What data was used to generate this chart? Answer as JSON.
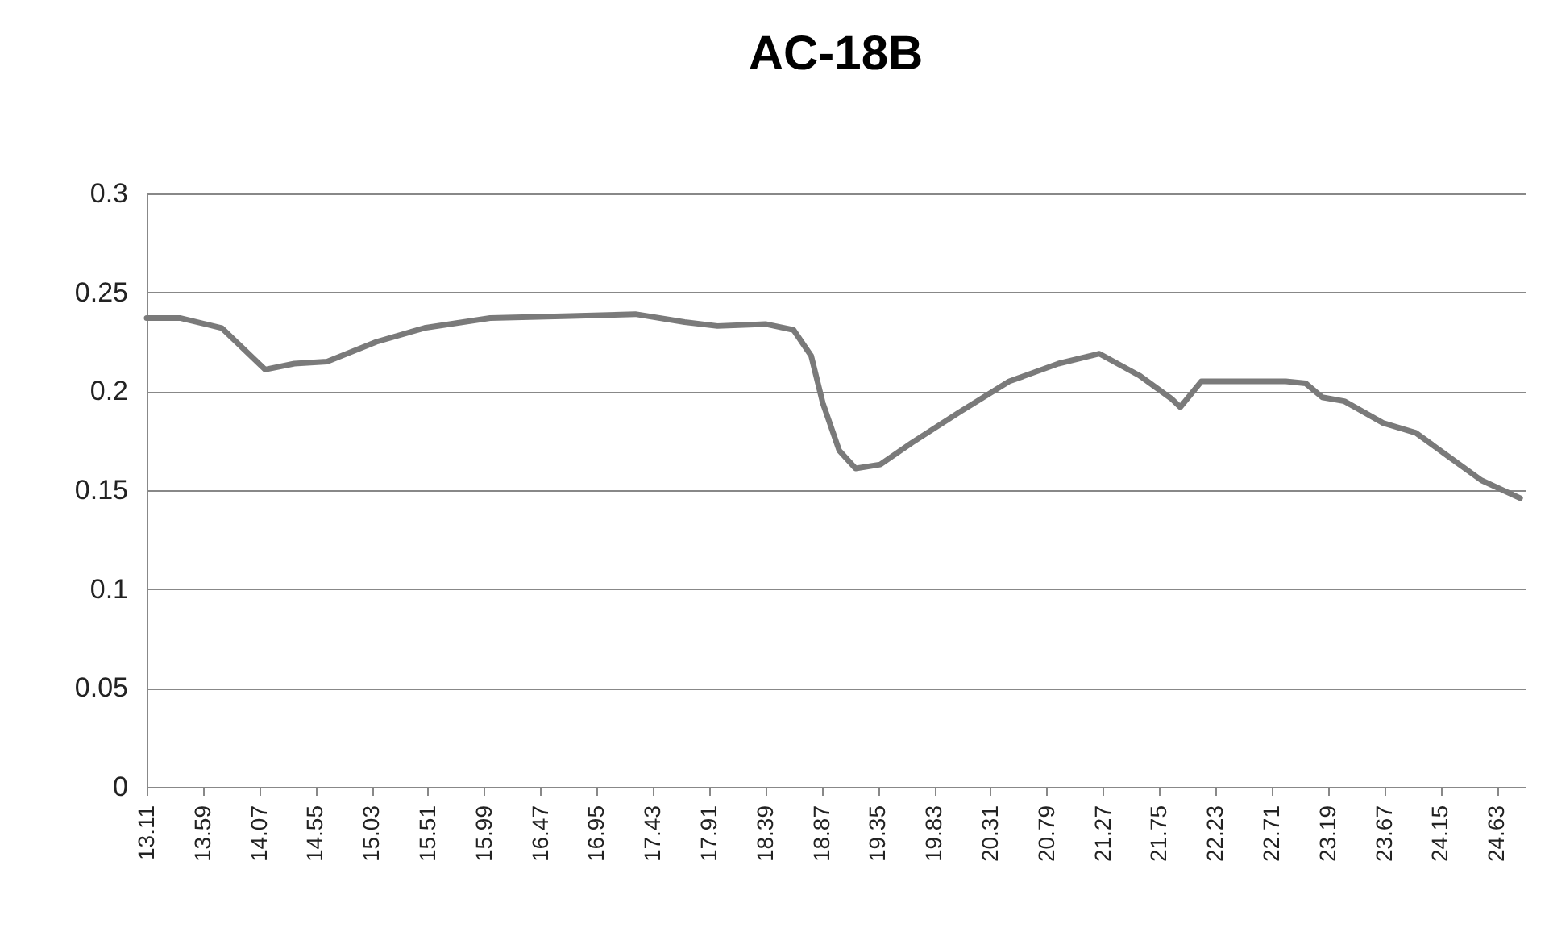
{
  "chart_data": {
    "type": "line",
    "title": "AC-18B",
    "x": [
      13.11,
      13.4,
      13.75,
      14.12,
      14.37,
      14.65,
      15.07,
      15.48,
      16.04,
      16.73,
      17.28,
      17.7,
      17.98,
      18.39,
      18.63,
      18.78,
      18.88,
      19.02,
      19.16,
      19.37,
      19.64,
      20.06,
      20.47,
      20.89,
      21.17,
      21.24,
      21.58,
      21.86,
      21.93,
      22.11,
      22.83,
      23.0,
      23.14,
      23.33,
      23.66,
      23.94,
      24.22,
      24.5,
      24.83
    ],
    "series": [
      {
        "color": "#7a7a7a",
        "values": [
          0.237,
          0.237,
          0.232,
          0.211,
          0.214,
          0.215,
          0.225,
          0.232,
          0.237,
          0.238,
          0.239,
          0.235,
          0.233,
          0.234,
          0.231,
          0.218,
          0.194,
          0.17,
          0.161,
          0.163,
          0.174,
          0.19,
          0.205,
          0.214,
          0.218,
          0.219,
          0.208,
          0.196,
          0.192,
          0.205,
          0.205,
          0.204,
          0.197,
          0.195,
          0.184,
          0.179,
          0.167,
          0.155,
          0.146
        ]
      }
    ],
    "xlim": [
      13.11,
      24.87
    ],
    "xticks": [
      13.11,
      13.59,
      14.07,
      14.55,
      15.03,
      15.51,
      15.99,
      16.47,
      16.95,
      17.43,
      17.91,
      18.39,
      18.87,
      19.35,
      19.83,
      20.31,
      20.79,
      21.27,
      21.75,
      22.23,
      22.71,
      23.19,
      23.67,
      24.15,
      24.63
    ],
    "ylim": [
      0,
      0.3
    ],
    "yticks": [
      0,
      0.05,
      0.1,
      0.15,
      0.2,
      0.25,
      0.3
    ],
    "grid": "y",
    "marker": "none",
    "line_style": "solid"
  }
}
